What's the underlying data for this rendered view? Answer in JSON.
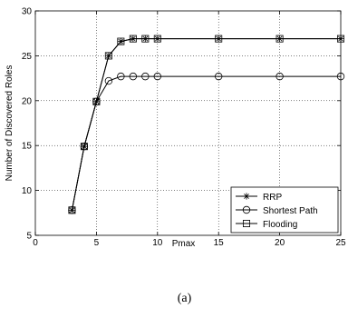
{
  "chart_data": {
    "type": "line",
    "xlabel": "Pmax",
    "ylabel": "Number of Discovered Roles",
    "xlim": [
      0,
      25
    ],
    "ylim": [
      5,
      30
    ],
    "xticks": [
      0,
      5,
      10,
      15,
      20,
      25
    ],
    "yticks": [
      5,
      10,
      15,
      20,
      25,
      30
    ],
    "xtick_labels": [
      "0",
      "5",
      "10",
      "15",
      "20",
      "25"
    ],
    "ytick_labels": [
      "5",
      "10",
      "15",
      "20",
      "25",
      "30"
    ],
    "grid": true,
    "legend_position": "bottom-right",
    "caption": "(a)",
    "series": [
      {
        "name": "RRP",
        "marker": "asterisk",
        "x": [
          3,
          4,
          5,
          6,
          7,
          8,
          9,
          10,
          15,
          20,
          25
        ],
        "y": [
          7.8,
          14.9,
          19.9,
          25.0,
          26.6,
          26.9,
          26.9,
          26.9,
          26.9,
          26.9,
          26.9
        ]
      },
      {
        "name": "Shortest Path",
        "marker": "circle",
        "x": [
          3,
          4,
          5,
          6,
          7,
          8,
          9,
          10,
          15,
          20,
          25
        ],
        "y": [
          7.8,
          14.9,
          19.9,
          22.2,
          22.7,
          22.7,
          22.7,
          22.7,
          22.7,
          22.7,
          22.7
        ]
      },
      {
        "name": "Flooding",
        "marker": "square",
        "x": [
          3,
          4,
          5,
          6,
          7,
          8,
          9,
          10,
          15,
          20,
          25
        ],
        "y": [
          7.8,
          14.9,
          19.9,
          25.0,
          26.6,
          26.9,
          26.9,
          26.9,
          26.9,
          26.9,
          26.9
        ]
      }
    ]
  }
}
